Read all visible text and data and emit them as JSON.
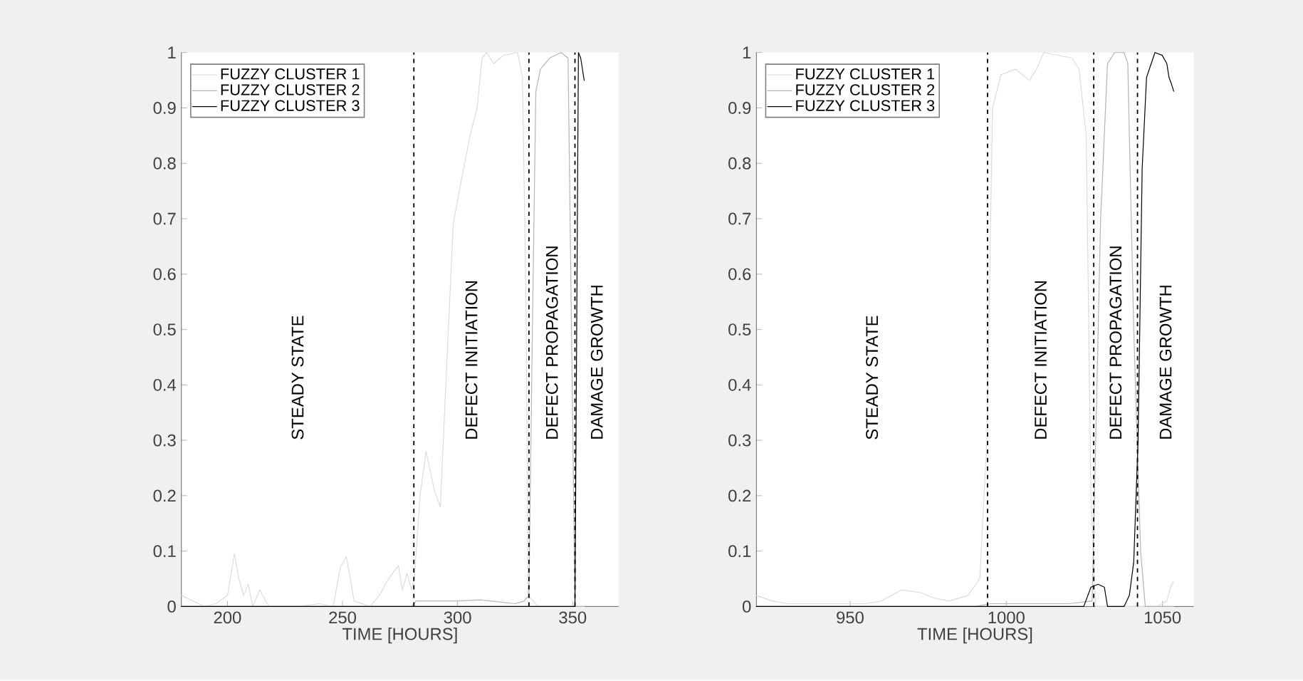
{
  "chart_data": [
    {
      "type": "line",
      "xlabel": "TIME [HOURS]",
      "xlim": [
        180,
        370
      ],
      "xticks": [
        200,
        250,
        300,
        350
      ],
      "ylim": [
        0,
        1
      ],
      "yticks": [
        0,
        0.1,
        0.2,
        0.3,
        0.4,
        0.5,
        0.6,
        0.7,
        0.8,
        0.9,
        1
      ],
      "legend": "top left",
      "series": [
        {
          "name": "FUZZY CLUSTER 1",
          "color": "#dcdcdc",
          "x": [
            180,
            185,
            190,
            195,
            200,
            203,
            205,
            207,
            209,
            211,
            214,
            218,
            230,
            240,
            246,
            249,
            251.6,
            253,
            255,
            262,
            266,
            270,
            274.3,
            276,
            278,
            280,
            281.2,
            283.7,
            286.3,
            289.9,
            292.5,
            295,
            298.1,
            301.2,
            305.4,
            308.5,
            310.6,
            312.6,
            315.7,
            319.9,
            326.1,
            328.2,
            329.8,
            330.6,
            335,
            345,
            355
          ],
          "values": [
            0.02,
            0.01,
            0.0,
            0.005,
            0.02,
            0.095,
            0.05,
            0.02,
            0.04,
            0.0,
            0.03,
            0.0,
            0.0,
            0.005,
            0.0,
            0.07,
            0.09,
            0.06,
            0.01,
            0.0,
            0.02,
            0.05,
            0.074,
            0.03,
            0.06,
            0.03,
            0.05,
            0.2,
            0.28,
            0.21,
            0.18,
            0.41,
            0.69,
            0.76,
            0.85,
            0.9,
            0.99,
            1.0,
            0.98,
            0.995,
            1.0,
            0.955,
            0.53,
            0.02,
            0.0,
            0.0,
            0.0
          ]
        },
        {
          "name": "FUZZY CLUSTER 2",
          "color": "#b4b4b4",
          "x": [
            180,
            280,
            282,
            300,
            310,
            325,
            329,
            331,
            332.5,
            334,
            336,
            340,
            345,
            348,
            349.5,
            351,
            355
          ],
          "values": [
            0.0,
            0.0,
            0.01,
            0.01,
            0.012,
            0.005,
            0.01,
            0.02,
            0.5,
            0.93,
            0.97,
            0.99,
            1.0,
            0.99,
            0.5,
            0.0,
            0.0
          ]
        },
        {
          "name": "FUZZY CLUSTER 3",
          "color": "#000000",
          "x": [
            180,
            300,
            351,
            352.5,
            353.5,
            355
          ],
          "values": [
            0.0,
            0.0,
            0.0,
            1.0,
            0.99,
            0.95
          ]
        }
      ],
      "ref_lines": [
        {
          "axis": "x",
          "value": 281,
          "line_style": "dashed",
          "color": "#000000"
        },
        {
          "axis": "x",
          "value": 331,
          "line_style": "dashed",
          "color": "#000000"
        },
        {
          "axis": "x",
          "value": 351,
          "line_style": "dashed",
          "color": "#000000"
        }
      ],
      "annotations": [
        "STEADY STATE",
        "DEFECT INITIATION",
        "DEFECT PROPAGATION",
        "DAMAGE GROWTH"
      ]
    },
    {
      "type": "line",
      "xlabel": "TIME [HOURS]",
      "xlim": [
        920,
        1060
      ],
      "xticks": [
        950,
        1000,
        1050
      ],
      "ylim": [
        0,
        1
      ],
      "yticks": [
        0,
        0.1,
        0.2,
        0.3,
        0.4,
        0.5,
        0.6,
        0.7,
        0.8,
        0.9,
        1
      ],
      "legend": "top left",
      "series": [
        {
          "name": "FUZZY CLUSTER 1",
          "color": "#dcdcdc",
          "x": [
            920,
            925,
            930,
            955,
            960,
            966.5,
            972.6,
            977,
            981.7,
            987.7,
            991.5,
            993.8,
            995.6,
            998.3,
            1002.9,
            1007.4,
            1009.7,
            1012,
            1021,
            1023.3,
            1025.6,
            1027.1,
            1028.6,
            1042.3,
            1048.3,
            1051.4,
            1052.9,
            1053.6
          ],
          "values": [
            0.02,
            0.01,
            0.005,
            0.005,
            0.01,
            0.03,
            0.025,
            0.015,
            0.01,
            0.02,
            0.05,
            0.3,
            0.9,
            0.96,
            0.97,
            0.95,
            0.97,
            1.0,
            0.99,
            0.97,
            0.85,
            0.2,
            0.0,
            0.0,
            0.0,
            0.01,
            0.04,
            0.045
          ]
        },
        {
          "name": "FUZZY CLUSTER 2",
          "color": "#b4b4b4",
          "x": [
            920,
            990,
            995,
            1020,
            1027.5,
            1030.2,
            1032.4,
            1034.7,
            1037.7,
            1038.9,
            1040.8,
            1043,
            1044.5,
            1053.6
          ],
          "values": [
            0.0,
            0.0,
            0.005,
            0.005,
            0.01,
            0.7,
            0.98,
            1.0,
            1.0,
            0.98,
            0.5,
            0.1,
            0.0,
            0.0
          ]
        },
        {
          "name": "FUZZY CLUSTER 3",
          "color": "#000000",
          "x": [
            920,
            1024.8,
            1027.1,
            1029.4,
            1031.4,
            1032.4,
            1037.7,
            1039.4,
            1040.8,
            1042.2,
            1043.5,
            1044.9,
            1047.6,
            1049.9,
            1051.4,
            1052.1,
            1052.9,
            1053.6
          ],
          "values": [
            0.0,
            0.0,
            0.035,
            0.04,
            0.035,
            0.0,
            0.0,
            0.02,
            0.08,
            0.3,
            0.79,
            0.955,
            1.0,
            0.995,
            0.98,
            0.955,
            0.943,
            0.93
          ]
        }
      ],
      "ref_lines": [
        {
          "axis": "x",
          "value": 994,
          "line_style": "dashed",
          "color": "#000000"
        },
        {
          "axis": "x",
          "value": 1028,
          "line_style": "dashed",
          "color": "#000000"
        },
        {
          "axis": "x",
          "value": 1042,
          "line_style": "dashed",
          "color": "#000000"
        }
      ],
      "annotations": [
        "STEADY STATE",
        "DEFECT INITIATION",
        "DEFECT PROPAGATION",
        "DAMAGE GROWTH"
      ]
    }
  ]
}
